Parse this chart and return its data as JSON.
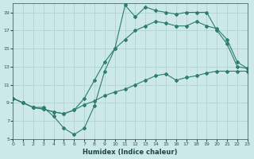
{
  "xlabel": "Humidex (Indice chaleur)",
  "bg_color": "#cce8e8",
  "line_color": "#2e7d6e",
  "grid_color": "#aacfcf",
  "xmin": 0,
  "xmax": 23,
  "ymin": 5,
  "ymax": 20,
  "yticks": [
    5,
    7,
    9,
    11,
    13,
    15,
    17,
    19
  ],
  "xticks": [
    0,
    1,
    2,
    3,
    4,
    5,
    6,
    7,
    8,
    9,
    10,
    11,
    12,
    13,
    14,
    15,
    16,
    17,
    18,
    19,
    20,
    21,
    22,
    23
  ],
  "line1_x": [
    0,
    1,
    2,
    3,
    4,
    5,
    6,
    7,
    8,
    9,
    10,
    11,
    12,
    13,
    14,
    15,
    16,
    17,
    18,
    19,
    20,
    21,
    22,
    23
  ],
  "line1_y": [
    9.5,
    9.0,
    8.5,
    8.5,
    7.5,
    6.2,
    5.5,
    6.2,
    8.7,
    12.5,
    15.0,
    19.8,
    18.5,
    19.6,
    19.2,
    19.0,
    18.8,
    19.0,
    19.0,
    19.0,
    17.0,
    15.5,
    13.0,
    12.8
  ],
  "line2_x": [
    0,
    1,
    2,
    3,
    4,
    5,
    6,
    7,
    8,
    9,
    10,
    11,
    12,
    13,
    14,
    15,
    16,
    17,
    18,
    19,
    20,
    21,
    22,
    23
  ],
  "line2_y": [
    9.5,
    9.0,
    8.5,
    8.3,
    8.0,
    7.8,
    8.2,
    9.5,
    11.5,
    13.5,
    15.0,
    16.0,
    17.0,
    17.5,
    18.0,
    17.8,
    17.5,
    17.5,
    18.0,
    17.5,
    17.2,
    16.0,
    13.5,
    12.8
  ],
  "line3_x": [
    0,
    1,
    2,
    3,
    4,
    5,
    6,
    7,
    8,
    9,
    10,
    11,
    12,
    13,
    14,
    15,
    16,
    17,
    18,
    19,
    20,
    21,
    22,
    23
  ],
  "line3_y": [
    9.5,
    9.0,
    8.5,
    8.3,
    8.0,
    7.8,
    8.2,
    8.8,
    9.2,
    9.8,
    10.2,
    10.5,
    11.0,
    11.5,
    12.0,
    12.2,
    11.5,
    11.8,
    12.0,
    12.3,
    12.5,
    12.5,
    12.5,
    12.5
  ]
}
